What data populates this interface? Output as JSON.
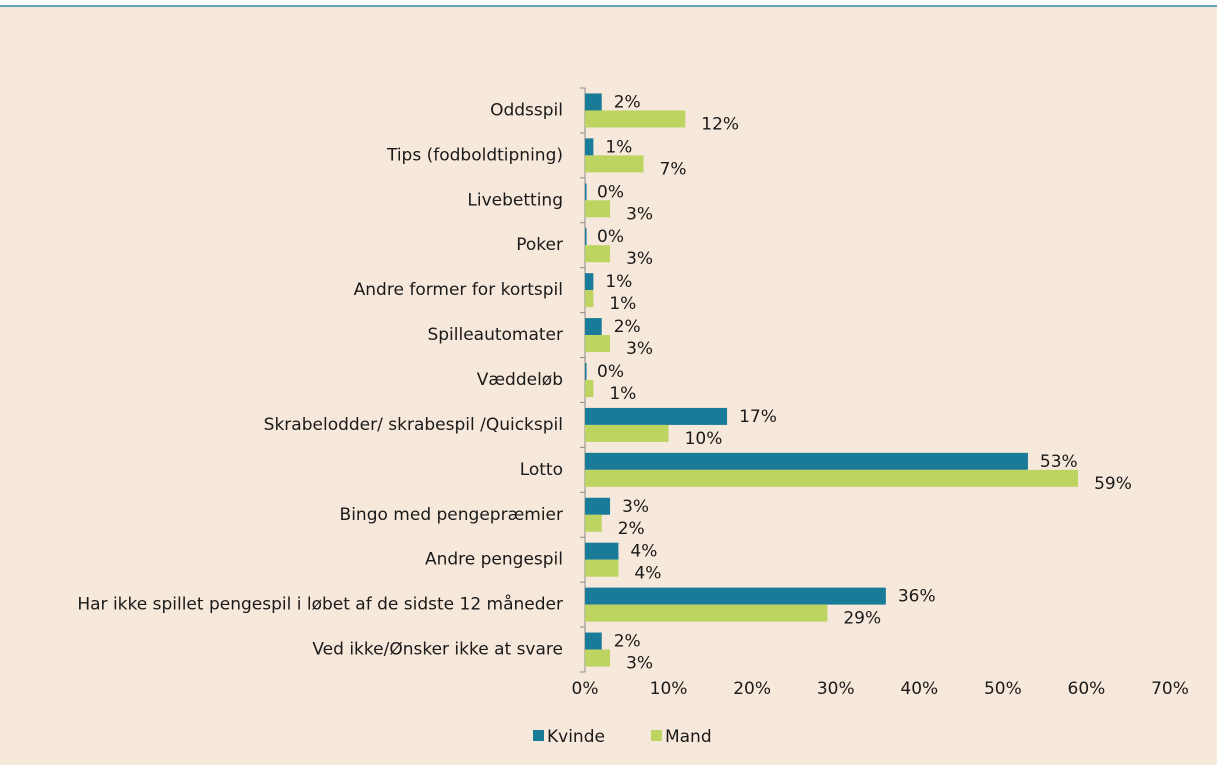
{
  "chart_data": {
    "type": "hbar",
    "categories": [
      "Oddsspil",
      "Tips (fodboldtipning)",
      "Livebetting",
      "Poker",
      "Andre former for kortspil",
      "Spilleautomater",
      "Væddeløb",
      "Skrabelodder/ skrabespil /Quickspil",
      "Lotto",
      "Bingo med pengepræmier",
      "Andre pengespil",
      "Har ikke spillet pengespil i løbet af de sidste 12 måneder",
      "Ved ikke/Ønsker ikke at svare"
    ],
    "series": [
      {
        "name": "Kvinde",
        "color": "#1a7b98",
        "values": [
          2,
          1,
          0,
          0,
          1,
          2,
          0,
          17,
          53,
          3,
          4,
          36,
          2
        ],
        "value_labels": [
          "2%",
          "1%",
          "0%",
          "0%",
          "1%",
          "2%",
          "0%",
          "17%",
          "53%",
          "3%",
          "4%",
          "36%",
          "2%"
        ]
      },
      {
        "name": "Mand",
        "color": "#bdd460",
        "values": [
          12,
          7,
          3,
          3,
          1,
          3,
          1,
          10,
          59,
          2,
          4,
          29,
          3
        ],
        "value_labels": [
          "12%",
          "7%",
          "3%",
          "3%",
          "1%",
          "3%",
          "1%",
          "10%",
          "59%",
          "2%",
          "4%",
          "29%",
          "3%"
        ]
      }
    ],
    "xlim": [
      0,
      70
    ],
    "xticks": [
      {
        "value": 0,
        "label": "0%"
      },
      {
        "value": 10,
        "label": "10%"
      },
      {
        "value": 20,
        "label": "20%"
      },
      {
        "value": 30,
        "label": "30%"
      },
      {
        "value": 40,
        "label": "40%"
      },
      {
        "value": 50,
        "label": "50%"
      },
      {
        "value": 60,
        "label": "60%"
      },
      {
        "value": 70,
        "label": "70%"
      }
    ],
    "legend": "bottom"
  }
}
